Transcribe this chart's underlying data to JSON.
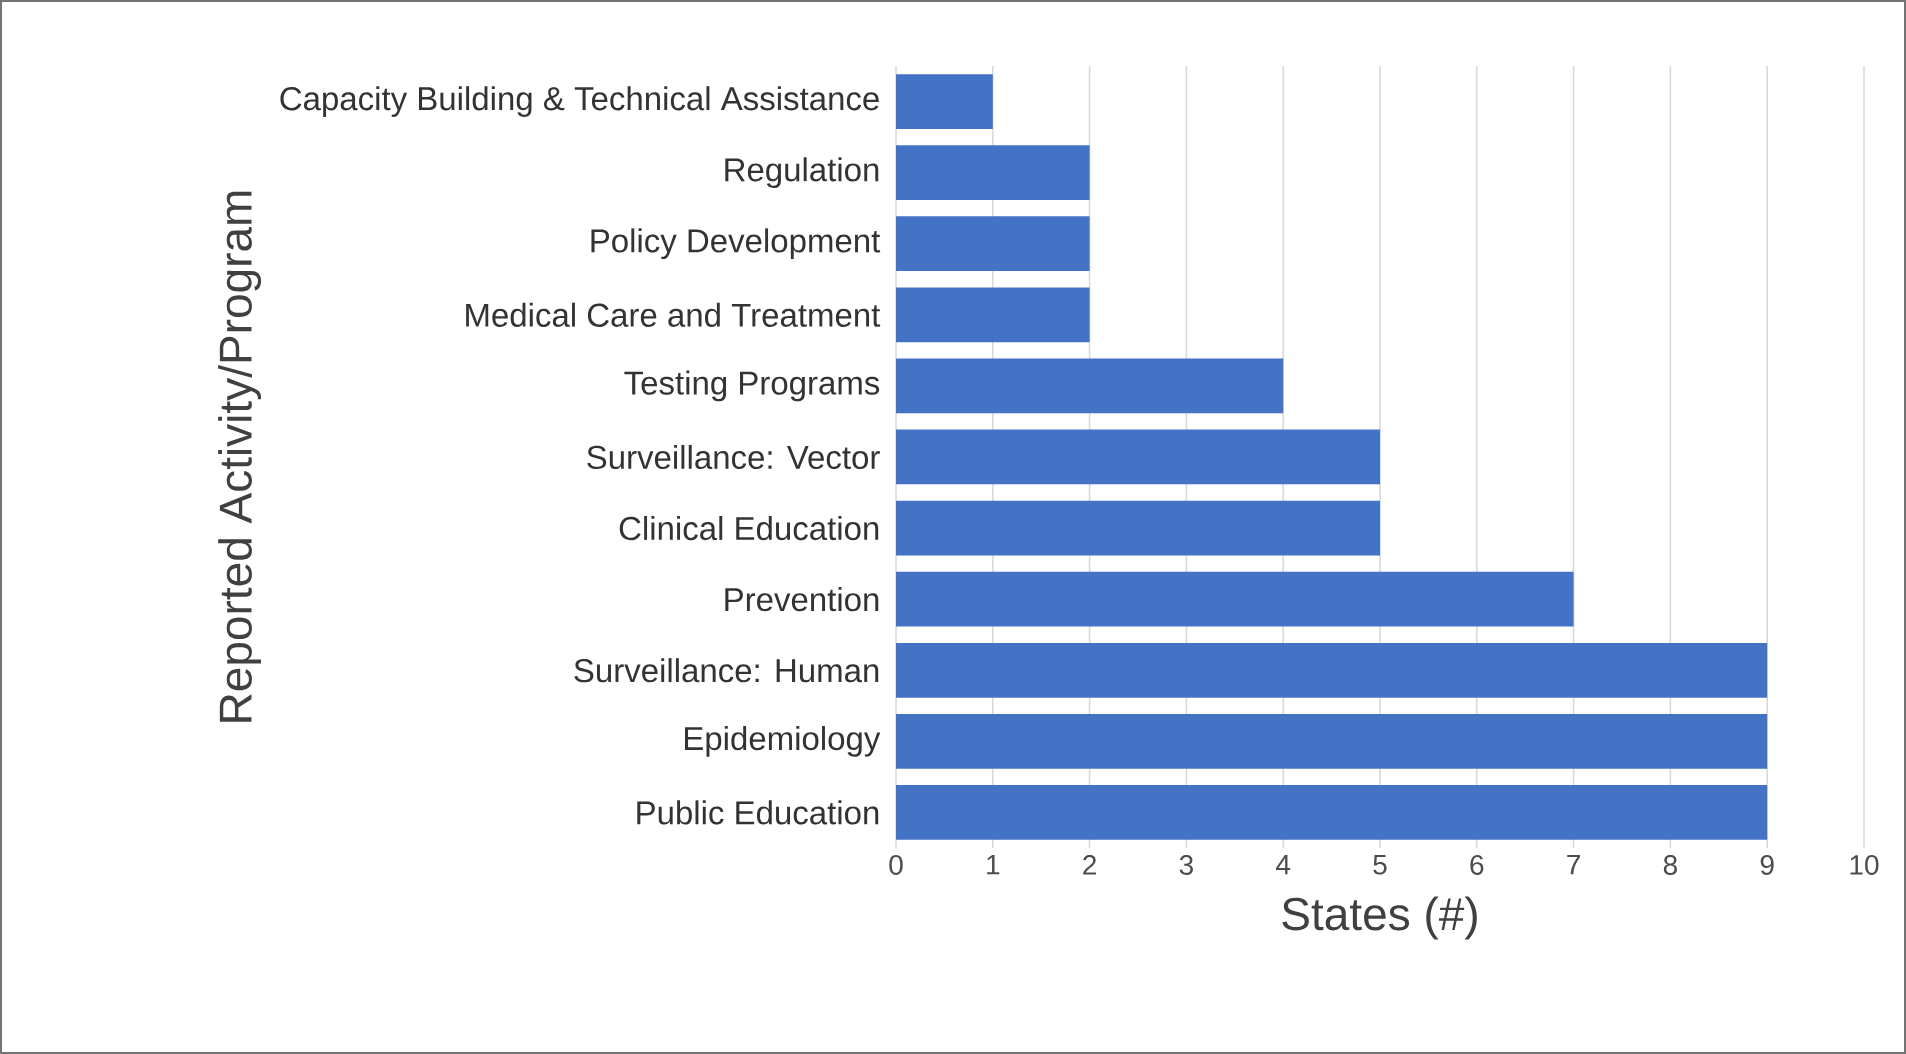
{
  "chart_data": {
    "type": "bar",
    "orientation": "horizontal",
    "xlabel": "States (#)",
    "ylabel": "Reported Activity/Program",
    "categories": [
      "Capacity Building & Technical Assistance",
      "Regulation",
      "Policy Development",
      "Medical Care and Treatment",
      "Testing Programs",
      "Surveillance: Vector",
      "Clinical Education",
      "Prevention",
      "Surveillance: Human",
      "Epidemiology",
      "Public Education"
    ],
    "values": [
      1,
      2,
      2,
      2,
      4,
      5,
      5,
      7,
      9,
      9,
      9
    ],
    "color": "#4472c4",
    "xlim": [
      0,
      10
    ],
    "xticks": [
      0,
      1,
      2,
      3,
      4,
      5,
      6,
      7,
      8,
      9,
      10
    ],
    "grid": "x"
  }
}
